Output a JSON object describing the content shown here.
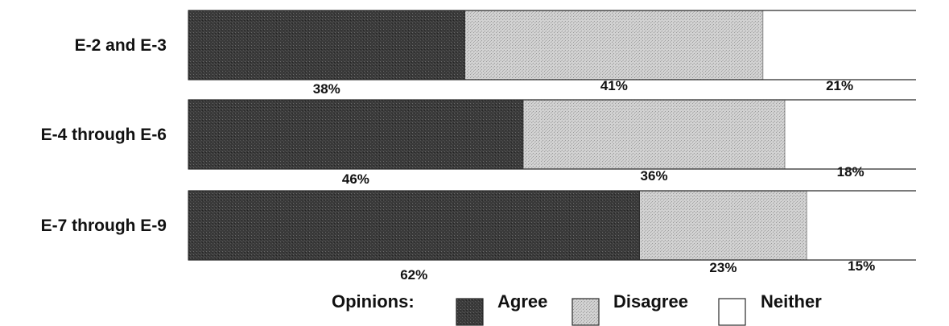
{
  "chart_data": {
    "type": "bar",
    "orientation": "horizontal",
    "stacked": true,
    "title": "",
    "xlabel": "",
    "ylabel": "",
    "xlim": [
      0,
      100
    ],
    "grid": false,
    "categories": [
      "E-2 and E-3",
      "E-4 through E-6",
      "E-7 through E-9"
    ],
    "series": [
      {
        "name": "Agree",
        "values": [
          38,
          46,
          62
        ],
        "labels": [
          "38%",
          "46%",
          "62%"
        ],
        "color": "#3a3a3a"
      },
      {
        "name": "Disagree",
        "values": [
          41,
          36,
          23
        ],
        "labels": [
          "41%",
          "36%",
          "23%"
        ],
        "color": "#c8c8c8"
      },
      {
        "name": "Neither",
        "values": [
          21,
          18,
          15
        ],
        "labels": [
          "21%",
          "18%",
          "15%"
        ],
        "color": "#ffffff"
      }
    ],
    "legend": {
      "title": "Opinions:",
      "position": "bottom-center"
    }
  }
}
